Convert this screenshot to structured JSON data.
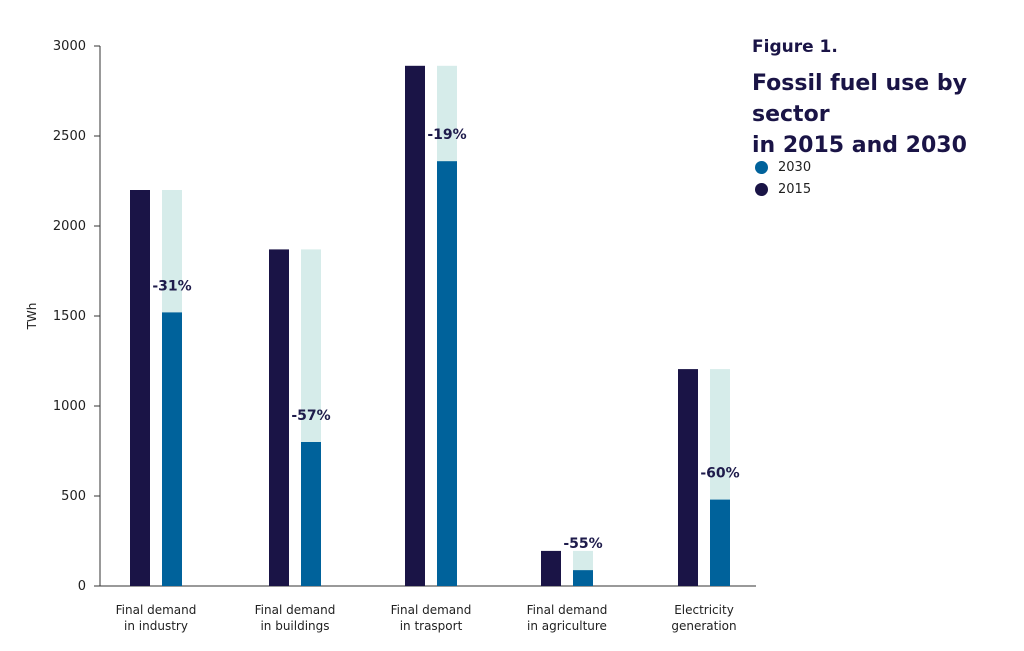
{
  "figure": {
    "label": "Figure 1.",
    "title_line1": "Fossil fuel use by sector",
    "title_line2": "in 2015 and 2030"
  },
  "legend": [
    {
      "name": "2030",
      "color": "#00629b"
    },
    {
      "name": "2015",
      "color": "#1a1446"
    }
  ],
  "chart_data": {
    "type": "bar",
    "ylabel": "TWh",
    "ylim": [
      0,
      3000
    ],
    "yticks": [
      0,
      500,
      1000,
      1500,
      2000,
      2500,
      3000
    ],
    "categories": [
      [
        "Final demand",
        "in industry"
      ],
      [
        "Final demand",
        "in buildings"
      ],
      [
        "Final demand",
        "in trasport"
      ],
      [
        "Final demand",
        "in agriculture"
      ],
      [
        "Electricity",
        "generation"
      ]
    ],
    "series": [
      {
        "name": "2015",
        "values": [
          2200,
          1870,
          2890,
          195,
          1205
        ],
        "color": "#1a1446"
      },
      {
        "name": "2030",
        "values": [
          1520,
          800,
          2360,
          88,
          480
        ],
        "color": "#00629b"
      }
    ],
    "reference_2015_shade_color": "#d6ecea",
    "change_labels": [
      "-31%",
      "-57%",
      "-19%",
      "-55%",
      "-60%"
    ],
    "grid": false,
    "legend_position": "top-right"
  }
}
